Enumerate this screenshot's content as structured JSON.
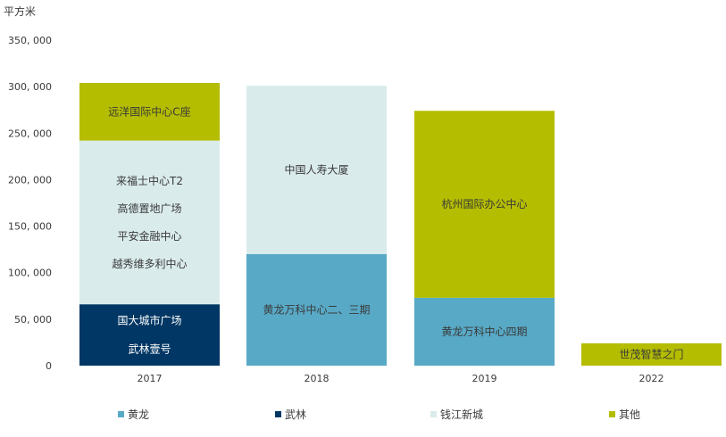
{
  "chart_data": {
    "type": "bar",
    "stacked": true,
    "ylabel": "平方米",
    "ylim": [
      0,
      350000
    ],
    "yticks": [
      0,
      50000,
      100000,
      150000,
      200000,
      250000,
      300000,
      350000
    ],
    "ytick_labels": [
      "0",
      "50, 000",
      "100, 000",
      "150, 000",
      "200, 000",
      "250, 000",
      "300, 000",
      "350, 000"
    ],
    "categories": [
      "2017",
      "2018",
      "2019",
      "2022"
    ],
    "grid": false,
    "legend_position": "bottom",
    "series": [
      {
        "name": "黄龙",
        "color": "#58a9c6",
        "values": [
          0,
          120000,
          73000,
          0
        ]
      },
      {
        "name": "武林",
        "color": "#013764",
        "values": [
          66000,
          0,
          0,
          0
        ]
      },
      {
        "name": "钱江新城",
        "color": "#daebec",
        "values": [
          176000,
          181000,
          0,
          0
        ]
      },
      {
        "name": "其他",
        "color": "#b4bd00",
        "values": [
          62000,
          0,
          201000,
          24000
        ]
      }
    ],
    "annotations": [
      {
        "category": "2017",
        "series": "武林",
        "lines": [
          "国大城市广场",
          "武林壹号"
        ],
        "color": "#ffffff"
      },
      {
        "category": "2017",
        "series": "钱江新城",
        "lines": [
          "来福士中心T2",
          "高德置地广场",
          "平安金融中心",
          "越秀维多利中心"
        ],
        "color": "#3a3a3a"
      },
      {
        "category": "2017",
        "series": "其他",
        "lines": [
          "远洋国际中心C座"
        ],
        "color": "#3a3a3a"
      },
      {
        "category": "2018",
        "series": "黄龙",
        "lines": [
          "黄龙万科中心二、三期"
        ],
        "color": "#3a3a3a"
      },
      {
        "category": "2018",
        "series": "钱江新城",
        "lines": [
          "中国人寿大厦"
        ],
        "color": "#3a3a3a"
      },
      {
        "category": "2019",
        "series": "黄龙",
        "lines": [
          "黄龙万科中心四期"
        ],
        "color": "#3a3a3a"
      },
      {
        "category": "2019",
        "series": "其他",
        "lines": [
          "杭州国际办公中心"
        ],
        "color": "#3a3a3a"
      },
      {
        "category": "2022",
        "series": "其他",
        "lines": [
          "世茂智慧之门"
        ],
        "color": "#3a3a3a"
      }
    ]
  }
}
